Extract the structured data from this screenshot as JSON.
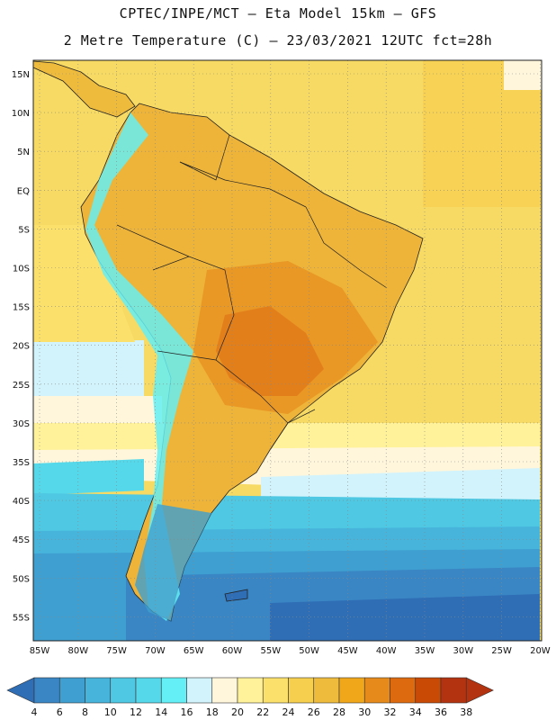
{
  "header": {
    "line1": "CPTEC/INPE/MCT –  Eta Model 15km – GFS",
    "line2": "2 Metre Temperature (C) – 23/03/2021 12UTC fct=28h"
  },
  "axes": {
    "lat_labels": [
      "15N",
      "10N",
      "5N",
      "EQ",
      "5S",
      "10S",
      "15S",
      "20S",
      "25S",
      "30S",
      "35S",
      "40S",
      "45S",
      "50S",
      "55S"
    ],
    "lon_labels": [
      "85W",
      "80W",
      "75W",
      "70W",
      "65W",
      "60W",
      "55W",
      "50W",
      "45W",
      "40W",
      "35W",
      "30W",
      "25W",
      "20W"
    ]
  },
  "colorbar": {
    "values": [
      "4",
      "6",
      "8",
      "10",
      "12",
      "14",
      "16",
      "18",
      "20",
      "22",
      "24",
      "26",
      "28",
      "30",
      "32",
      "34",
      "36",
      "38"
    ],
    "colors": [
      "#2f6db5",
      "#3a86c4",
      "#3f9fd0",
      "#47b4dc",
      "#4fc8e3",
      "#55d9ea",
      "#64eef5",
      "#d2f3fb",
      "#fff6dc",
      "#fff29a",
      "#fbe06c",
      "#f6cf4f",
      "#efbb3c",
      "#f0a71a",
      "#e78a1c",
      "#de6a0f",
      "#c94a05",
      "#b3320f",
      "#3a77c0"
    ]
  }
}
